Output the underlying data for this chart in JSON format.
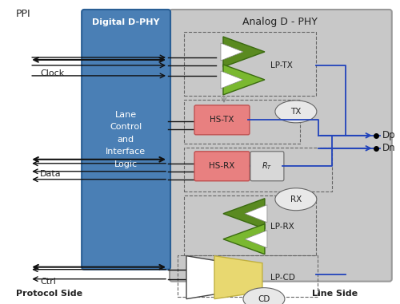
{
  "fig_bg": "#ffffff",
  "analog_bg": "#c8c8c8",
  "analog_border": "#999999",
  "digital_bg": "#4a7fb5",
  "digital_border": "#2a5f95",
  "green_dark": "#5a8a20",
  "green_light": "#7ab830",
  "green_mid": "#6a9a28",
  "pink": "#e88080",
  "pink_border": "#c05050",
  "yellow": "#e8d870",
  "yellow_border": "#c0b040",
  "blue_line": "#2244bb",
  "black_line": "#111111",
  "gray_line": "#555555",
  "white": "#ffffff",
  "ellipse_bg": "#e8e8e8",
  "labels": {
    "ppi": "PPI",
    "digital": "Digital D-PHY",
    "analog": "Analog D - PHY",
    "inner": "Lane\nControl\nand\nInterface\nLogic",
    "clock": "Clock",
    "data": "Data",
    "ctrl": "Ctrl",
    "lp_tx": "LP-TX",
    "hs_tx": "HS-TX",
    "hs_rx": "HS-RX",
    "rt": "R T",
    "lp_rx": "LP-RX",
    "lp_cd": "LP-CD",
    "tx": "TX",
    "rx": "RX",
    "cd": "CD",
    "dp": "Dp",
    "dn": "Dn",
    "protocol": "Protocol Side",
    "line": "Line Side"
  }
}
